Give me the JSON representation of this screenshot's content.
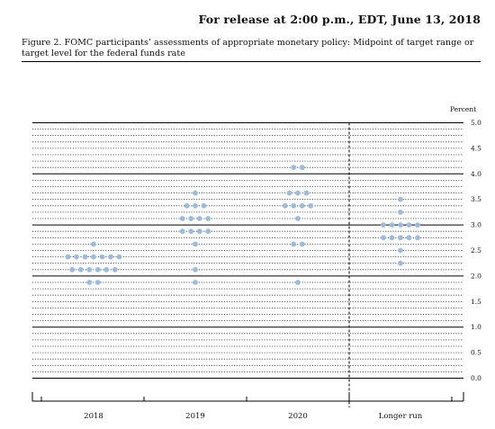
{
  "header": {
    "release": "For release at 2:00 p.m., EDT, June 13, 2018",
    "figure_title": "Figure 2. FOMC participants’ assessments of appropriate monetary policy: Midpoint of target range or target level for the federal funds rate"
  },
  "colors": {
    "dot": "#9dbcdc",
    "line": "#000000"
  },
  "chart_data": {
    "type": "scatter",
    "title": "Figure 2. FOMC participants’ assessments of appropriate monetary policy: Midpoint of target range or target level for the federal funds rate",
    "ylabel": "Percent",
    "ylim": [
      0,
      5
    ],
    "yticks": [
      "0.0",
      "0.5",
      "1.0",
      "1.5",
      "2.0",
      "2.5",
      "3.0",
      "3.5",
      "4.0",
      "4.5",
      "5.0"
    ],
    "categories": [
      "2018",
      "2019",
      "2020",
      "Longer run"
    ],
    "grid": "solid at whole percents, dotted at 0.125",
    "separator_before": "Longer run",
    "dots": [
      {
        "category": "2018",
        "values": [
          {
            "rate": 2.625,
            "count": 1
          },
          {
            "rate": 2.375,
            "count": 7
          },
          {
            "rate": 2.125,
            "count": 6
          },
          {
            "rate": 1.875,
            "count": 2
          }
        ]
      },
      {
        "category": "2019",
        "values": [
          {
            "rate": 3.625,
            "count": 1
          },
          {
            "rate": 3.375,
            "count": 3
          },
          {
            "rate": 3.125,
            "count": 4
          },
          {
            "rate": 2.875,
            "count": 4
          },
          {
            "rate": 2.625,
            "count": 1
          },
          {
            "rate": 2.125,
            "count": 1
          },
          {
            "rate": 1.875,
            "count": 1
          }
        ]
      },
      {
        "category": "2020",
        "values": [
          {
            "rate": 4.125,
            "count": 2
          },
          {
            "rate": 3.625,
            "count": 3
          },
          {
            "rate": 3.375,
            "count": 4
          },
          {
            "rate": 3.125,
            "count": 1
          },
          {
            "rate": 2.625,
            "count": 2
          },
          {
            "rate": 1.875,
            "count": 1
          }
        ]
      },
      {
        "category": "Longer run",
        "values": [
          {
            "rate": 3.5,
            "count": 1
          },
          {
            "rate": 3.25,
            "count": 1
          },
          {
            "rate": 3.0,
            "count": 5
          },
          {
            "rate": 2.75,
            "count": 5
          },
          {
            "rate": 2.5,
            "count": 1
          },
          {
            "rate": 2.25,
            "count": 1
          }
        ]
      }
    ]
  }
}
